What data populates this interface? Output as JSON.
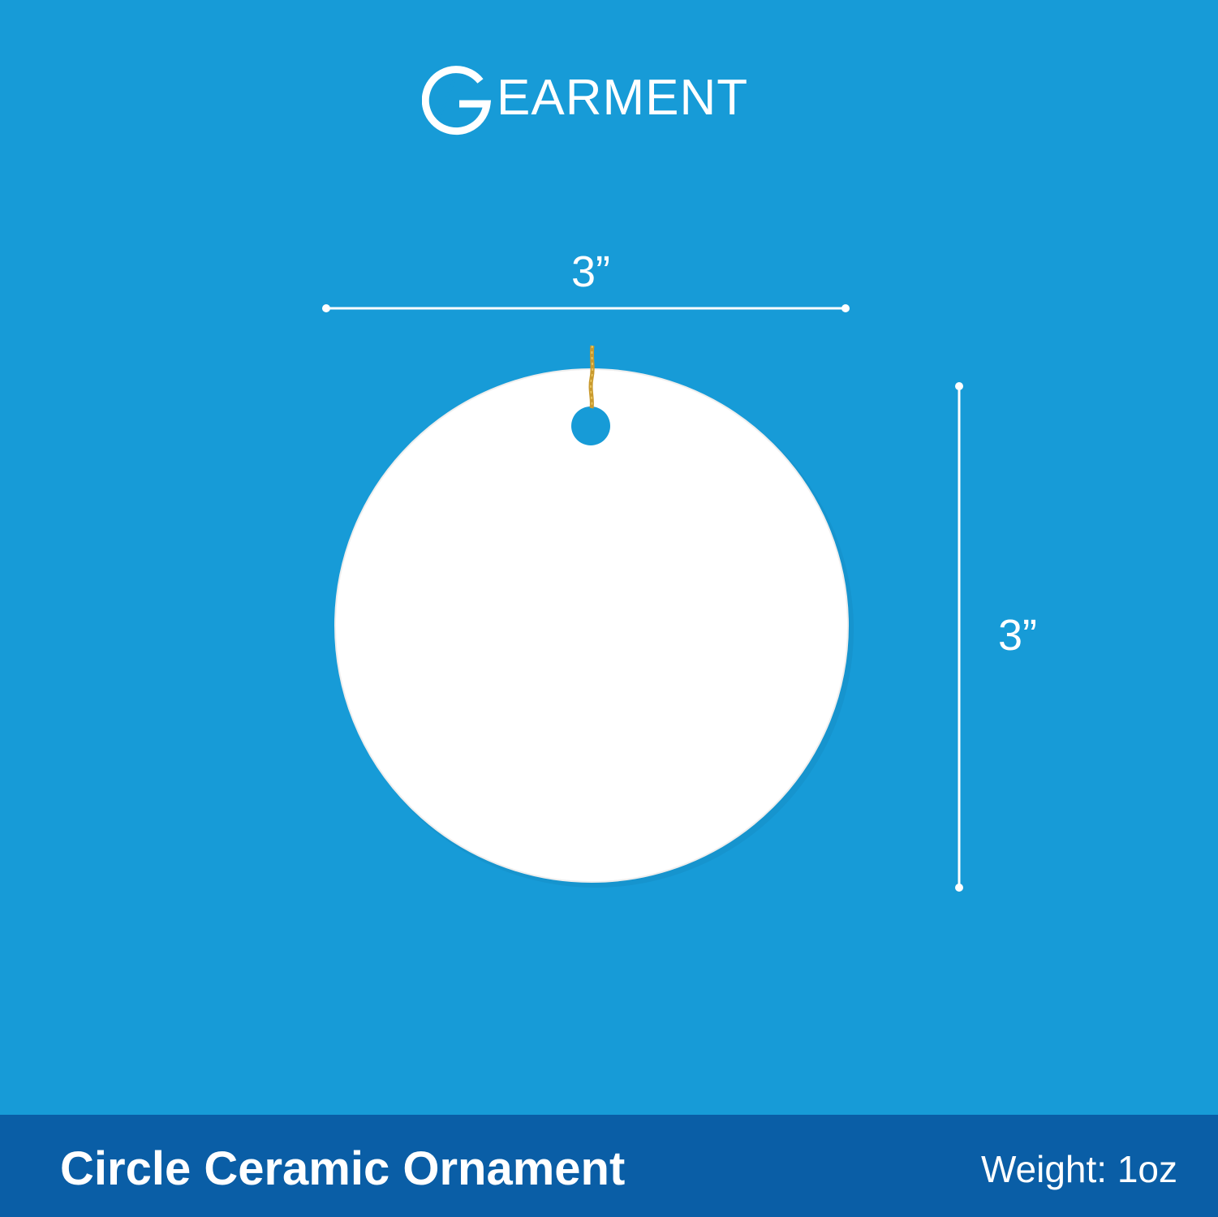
{
  "brand": {
    "logo_text": "EARMENT",
    "logo_letter": "G",
    "logo_name": "GEARMENT"
  },
  "dimensions": {
    "width_label": "3”",
    "height_label": "3”"
  },
  "product": {
    "name": "Circle Ceramic Ornament",
    "weight": "Weight: 1oz"
  },
  "colors": {
    "background": "#179bd7",
    "footer": "#0a5ea6",
    "ornament": "#ffffff",
    "string": "#c99a2e",
    "text": "#ffffff"
  }
}
